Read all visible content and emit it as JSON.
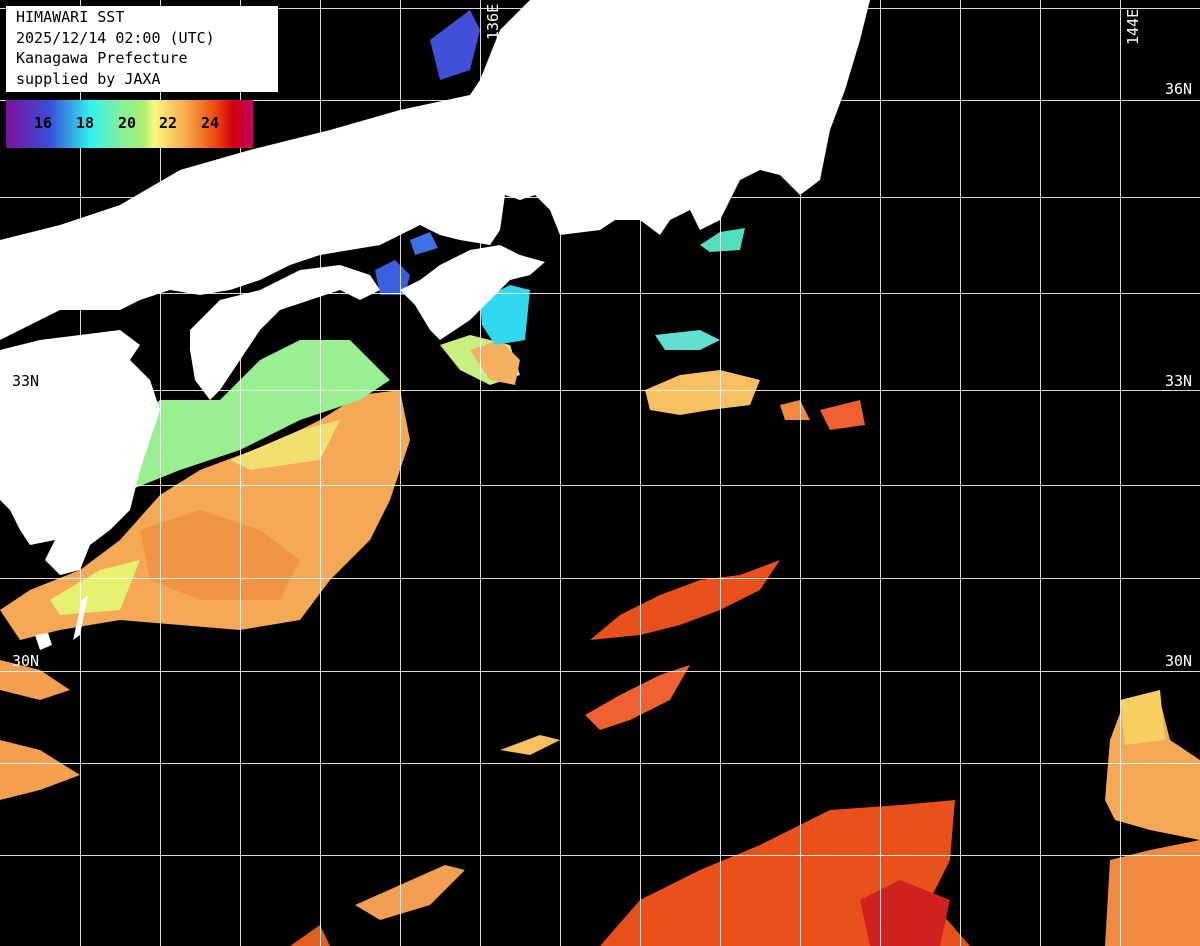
{
  "info": {
    "title": "HIMAWARI SST",
    "datetime": "2025/12/14 02:00 (UTC)",
    "region": "Kanagawa Prefecture",
    "credit": "supplied by JAXA"
  },
  "colorbar": {
    "labels": [
      "16",
      "18",
      "20",
      "22",
      "24"
    ],
    "colors": [
      "#7a10a0",
      "#3a50d8",
      "#30f0f0",
      "#80f0a0",
      "#f8f880",
      "#f8b050",
      "#f05010",
      "#c00060"
    ]
  },
  "grid": {
    "lon_labels": [
      "136E",
      "144E"
    ],
    "lat_labels_right": [
      "36N",
      "33N",
      "30N"
    ],
    "lat_labels_left": [
      "33N",
      "30N"
    ]
  },
  "colors": {
    "land": "#ffffff",
    "no_data": "#000000",
    "grid": "#ffffff"
  }
}
